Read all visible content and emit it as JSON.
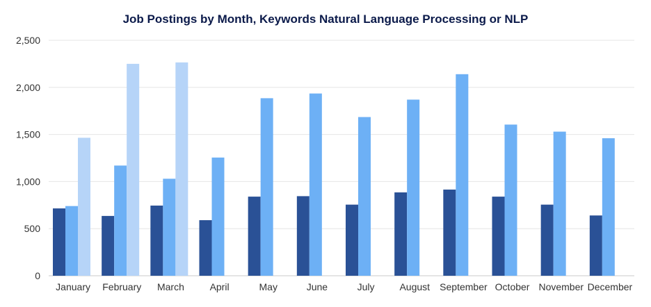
{
  "chart_data": {
    "type": "bar",
    "title": "Job Postings by Month, Keywords Natural Language Processing or NLP",
    "xlabel": "",
    "ylabel": "",
    "ylim": [
      0,
      2500
    ],
    "y_ticks": [
      "0",
      "500",
      "1,000",
      "1,500",
      "2,000",
      "2,500"
    ],
    "grid": true,
    "legend": "none",
    "categories": [
      "January",
      "February",
      "March",
      "April",
      "May",
      "June",
      "July",
      "August",
      "September",
      "October",
      "November",
      "December"
    ],
    "series": [
      {
        "color": "#2a5196",
        "values": [
          715,
          635,
          745,
          590,
          840,
          845,
          755,
          885,
          915,
          840,
          755,
          640
        ]
      },
      {
        "color": "#6db0f5",
        "values": [
          740,
          1170,
          1030,
          1255,
          1885,
          1935,
          1685,
          1870,
          2140,
          1605,
          1530,
          1460
        ]
      },
      {
        "color": "#b6d4f8",
        "values": [
          1465,
          2250,
          2265,
          null,
          null,
          null,
          null,
          null,
          null,
          null,
          null,
          null
        ]
      }
    ]
  }
}
